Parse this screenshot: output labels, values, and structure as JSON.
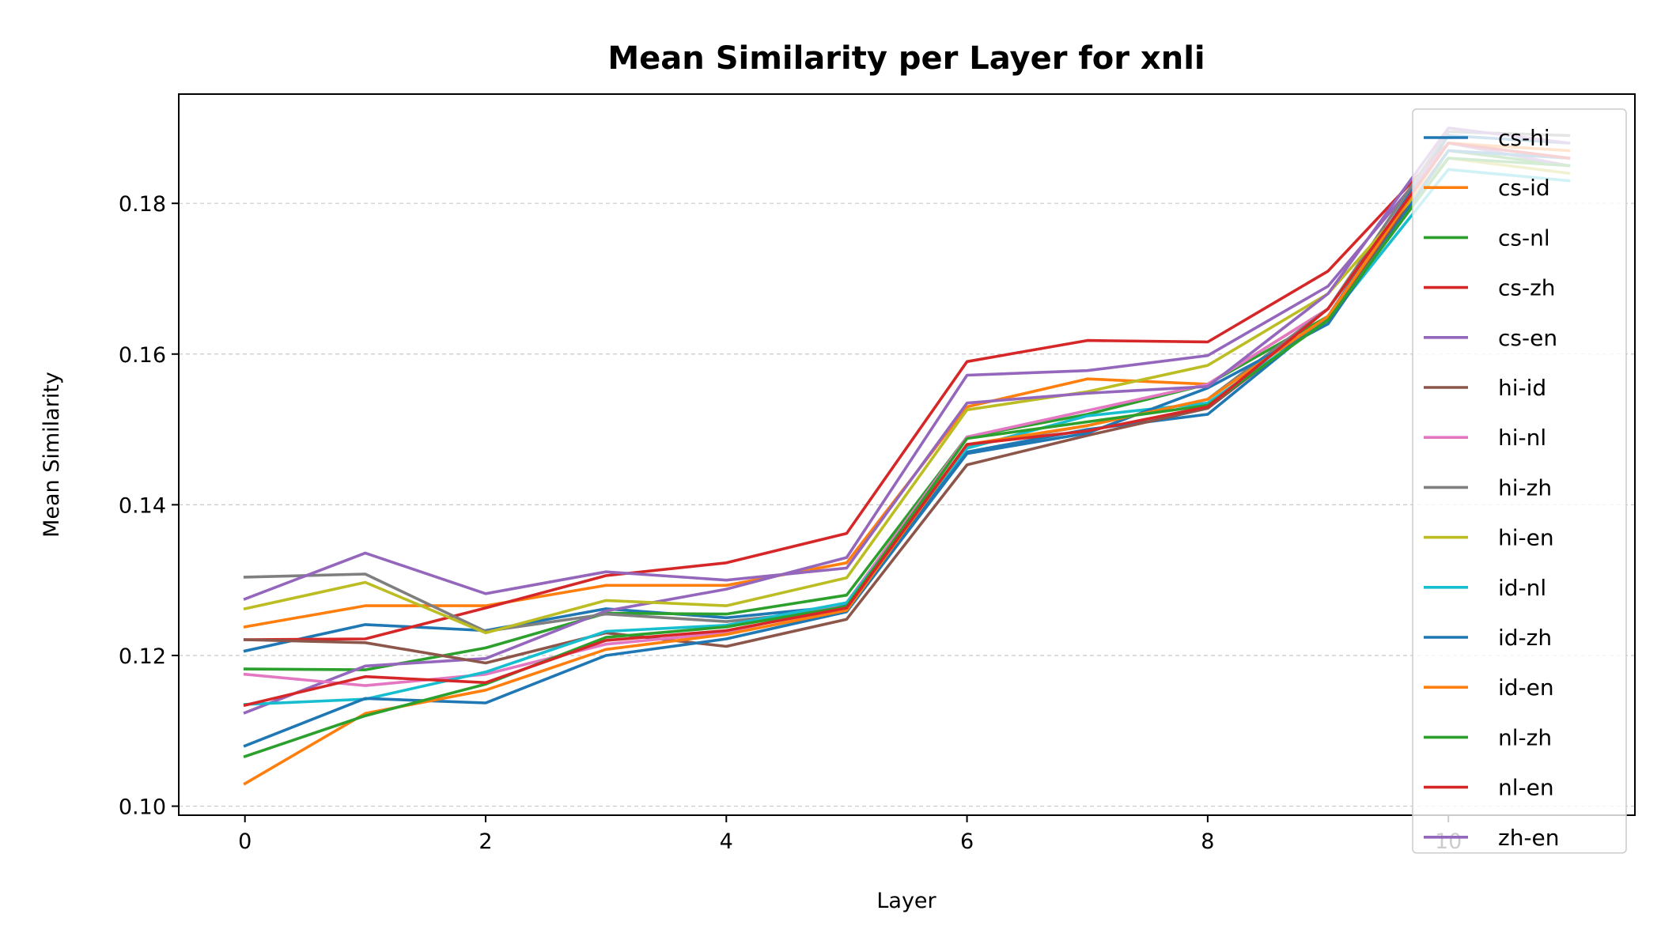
{
  "chart_data": {
    "type": "line",
    "title": "Mean Similarity per Layer for xnli",
    "xlabel": "Layer",
    "ylabel": "Mean Similarity",
    "xlim": [
      -0.55,
      11.55
    ],
    "ylim": [
      0.0988,
      0.1945
    ],
    "x_ticks": [
      0,
      2,
      4,
      6,
      8,
      10
    ],
    "y_ticks": [
      0.1,
      0.12,
      0.14,
      0.16,
      0.18
    ],
    "y_tick_labels": [
      "0.10",
      "0.12",
      "0.14",
      "0.16",
      "0.18"
    ],
    "grid": "horizontal dashed",
    "legend_position": "top-right",
    "x": [
      0,
      1,
      2,
      3,
      4,
      5,
      6,
      7,
      8,
      9,
      10,
      11
    ],
    "series": [
      {
        "name": "cs-hi",
        "color": "#1f77b4",
        "values": [
          0.1206,
          0.1241,
          0.1233,
          0.1262,
          0.125,
          0.1266,
          0.147,
          0.15,
          0.152,
          0.165,
          0.189,
          0.188
        ]
      },
      {
        "name": "cs-id",
        "color": "#ff7f0e",
        "values": [
          0.1238,
          0.1266,
          0.1266,
          0.1293,
          0.1293,
          0.1323,
          0.153,
          0.1567,
          0.156,
          0.166,
          0.188,
          0.186
        ]
      },
      {
        "name": "cs-nl",
        "color": "#2ca02c",
        "values": [
          0.1182,
          0.1181,
          0.121,
          0.1256,
          0.1255,
          0.128,
          0.149,
          0.152,
          0.156,
          0.165,
          0.187,
          0.185
        ]
      },
      {
        "name": "cs-zh",
        "color": "#d62728",
        "values": [
          0.1221,
          0.1222,
          0.1263,
          0.1306,
          0.1323,
          0.1362,
          0.159,
          0.1618,
          0.1616,
          0.171,
          0.188,
          0.186
        ]
      },
      {
        "name": "cs-en",
        "color": "#9467bd",
        "values": [
          0.1124,
          0.1186,
          0.1196,
          0.1259,
          0.1288,
          0.133,
          0.1572,
          0.1578,
          0.1598,
          0.169,
          0.188,
          0.185
        ]
      },
      {
        "name": "hi-id",
        "color": "#8c564b",
        "values": [
          0.1221,
          0.1217,
          0.119,
          0.123,
          0.1212,
          0.1248,
          0.1453,
          0.1492,
          0.1528,
          0.165,
          0.187,
          0.186
        ]
      },
      {
        "name": "hi-nl",
        "color": "#e377c2",
        "values": [
          0.1175,
          0.116,
          0.1175,
          0.1215,
          0.123,
          0.127,
          0.149,
          0.1525,
          0.156,
          0.166,
          0.188,
          0.186
        ]
      },
      {
        "name": "hi-zh",
        "color": "#7f7f7f",
        "values": [
          0.1304,
          0.1308,
          0.1232,
          0.1255,
          0.1245,
          0.1262,
          0.1478,
          0.1505,
          0.154,
          0.166,
          0.1895,
          0.189
        ]
      },
      {
        "name": "hi-en",
        "color": "#bcbd22",
        "values": [
          0.1262,
          0.1297,
          0.123,
          0.1273,
          0.1266,
          0.1303,
          0.1526,
          0.155,
          0.1585,
          0.168,
          0.186,
          0.184
        ]
      },
      {
        "name": "id-nl",
        "color": "#17becf",
        "values": [
          0.1135,
          0.1142,
          0.1178,
          0.1232,
          0.124,
          0.127,
          0.1475,
          0.1518,
          0.1535,
          0.1645,
          0.1845,
          0.183
        ]
      },
      {
        "name": "id-zh",
        "color": "#1f77b4",
        "values": [
          0.108,
          0.1143,
          0.1137,
          0.12,
          0.1222,
          0.1258,
          0.1468,
          0.1495,
          0.1555,
          0.164,
          0.187,
          0.186
        ]
      },
      {
        "name": "id-en",
        "color": "#ff7f0e",
        "values": [
          0.103,
          0.1123,
          0.1154,
          0.1208,
          0.1228,
          0.126,
          0.148,
          0.1505,
          0.154,
          0.165,
          0.188,
          0.187
        ]
      },
      {
        "name": "nl-zh",
        "color": "#2ca02c",
        "values": [
          0.1066,
          0.112,
          0.1162,
          0.1224,
          0.1238,
          0.1265,
          0.1488,
          0.151,
          0.1532,
          0.1645,
          0.186,
          0.185
        ]
      },
      {
        "name": "nl-en",
        "color": "#d62728",
        "values": [
          0.1134,
          0.1172,
          0.1164,
          0.122,
          0.1233,
          0.1263,
          0.148,
          0.1498,
          0.153,
          0.166,
          0.188,
          0.186
        ]
      },
      {
        "name": "zh-en",
        "color": "#9467bd",
        "values": [
          0.1275,
          0.1336,
          0.1282,
          0.1311,
          0.13,
          0.1316,
          0.1535,
          0.1548,
          0.1557,
          0.168,
          0.19,
          0.188
        ]
      }
    ]
  }
}
